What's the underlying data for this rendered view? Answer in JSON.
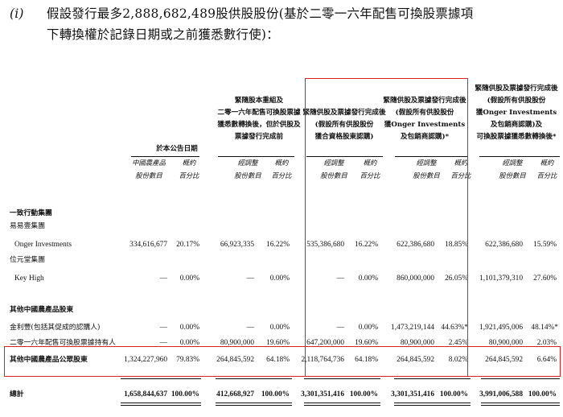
{
  "heading": {
    "number": "(i)",
    "line1": "假設發行最多2,888,682,489股供股股份(基於二零一六年配售可換股票據項",
    "line2": "下轉換權於記錄日期或之前獲悉數行使)："
  },
  "columns": [
    {
      "header_lines": [
        "於本公告日期"
      ],
      "sub1": "中國農產品",
      "sub2": "股份數目",
      "sub3": "概約",
      "sub4": "百分比"
    },
    {
      "header_lines": [
        "緊隨股本重組及",
        "二零一六年配售可換股票據",
        "獲悉數轉換後，但於供股及",
        "票據發行完成前"
      ],
      "sub1": "經調整",
      "sub2": "股份數目",
      "sub3": "概約",
      "sub4": "百分比"
    },
    {
      "header_lines": [
        "緊隨供股及票據發行完成後",
        "(假設所有供股股份",
        "獲合資格股東認購)"
      ],
      "sub1": "經調整",
      "sub2": "股份數目",
      "sub3": "概約",
      "sub4": "百分比"
    },
    {
      "header_lines": [
        "緊隨供股及票據發行完成後",
        "(假設所有供股股份",
        "獲Onger Investments",
        "及包銷商認購)*"
      ],
      "sub1": "經調整",
      "sub2": "股份數目",
      "sub3": "概約",
      "sub4": "百分比"
    },
    {
      "header_lines": [
        "緊隨供股及票據發行完成後",
        "(假設所有供股股份",
        "獲Onger Investments",
        "及包銷商認購)及",
        "可換股票據獲悉數轉換後*"
      ],
      "sub1": "經調整",
      "sub2": "股份數目",
      "sub3": "概約",
      "sub4": "百分比"
    }
  ],
  "rows": {
    "group1": "一致行動集團",
    "group1_sub": "易易壹集團",
    "onger": {
      "label": "Onger Investments",
      "values": [
        "334,616,677",
        "20.17%",
        "66,923,335",
        "16.22%",
        "535,386,680",
        "16.22%",
        "622,386,680",
        "18.85%",
        "622,386,680",
        "15.59%"
      ]
    },
    "group1_sub2": "位元堂集團",
    "keyhigh": {
      "label": "Key High",
      "values": [
        "—",
        "0.00%",
        "—",
        "0.00%",
        "—",
        "0.00%",
        "860,000,000",
        "26.05%",
        "1,101,379,310",
        "27.60%"
      ]
    },
    "group2": "其他中國農產品股東",
    "jinli": {
      "label": "金利豐(包括其促成的認購人)",
      "values": [
        "—",
        "0.00%",
        "—",
        "0.00%",
        "—",
        "0.00%",
        "1,473,219,144",
        "44.63%*",
        "1,921,495,006",
        "48.14%*"
      ]
    },
    "notes2016": {
      "label": "二零一六年配售可換股票據持有人",
      "values": [
        "—",
        "0.00%",
        "80,900,000",
        "19.60%",
        "647,200,000",
        "19.60%",
        "80,900,000",
        "2.45%",
        "80,900,000",
        "2.03%"
      ]
    },
    "public": {
      "label": "其他中國農產品公眾股東",
      "values": [
        "1,324,227,960",
        "79.83%",
        "264,845,592",
        "64.18%",
        "2,118,764,736",
        "64.18%",
        "264,845,592",
        "8.02%",
        "264,845,592",
        "6.64%"
      ]
    },
    "total": {
      "label": "總計",
      "values": [
        "1,658,844,637",
        "100.00%",
        "412,668,927",
        "100.00%",
        "3,301,351,416",
        "100.00%",
        "3,301,351,416",
        "100.00%",
        "3,991,006,588",
        "100.00%"
      ]
    }
  }
}
